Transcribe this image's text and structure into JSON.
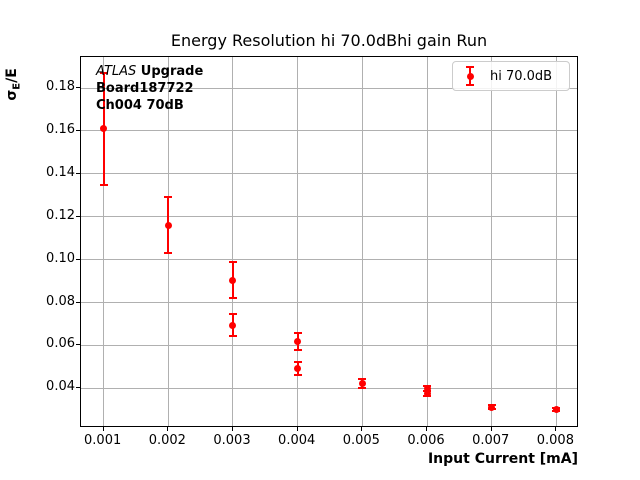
{
  "window": {
    "background": "#ffffff"
  },
  "title": "Energy Resolution hi 70.0dBhi gain Run",
  "annotation": {
    "brand": "ATLAS",
    "brand_suffix": " Upgrade",
    "line2": "Board187722",
    "line3": "Ch004 70dB"
  },
  "legend": {
    "label": "hi 70.0dB"
  },
  "axis": {
    "xlabel": "Input Current [mA]",
    "ylabel_sigma": "σ",
    "ylabel_sub": "E",
    "ylabel_rest": "/E"
  },
  "colors": {
    "series": "#ff0000",
    "grid": "#b0b0b0",
    "spine": "#000000",
    "legend_border": "#cccccc",
    "text": "#000000",
    "background": "#ffffff"
  },
  "chart_data": {
    "type": "scatter",
    "title": "Energy Resolution hi 70.0dBhi gain Run",
    "xlabel": "Input Current [mA]",
    "ylabel": "σ_E/E",
    "grid": true,
    "legend_position": "upper right",
    "legend_entries": [
      "hi 70.0dB"
    ],
    "xlim": [
      0.00065,
      0.00835
    ],
    "ylim": [
      0.0215,
      0.1945
    ],
    "x_ticks": [
      0.001,
      0.002,
      0.003,
      0.004,
      0.005,
      0.006,
      0.007,
      0.008
    ],
    "x_tick_labels": [
      "0.001",
      "0.002",
      "0.003",
      "0.004",
      "0.005",
      "0.006",
      "0.007",
      "0.008"
    ],
    "y_ticks": [
      0.04,
      0.06,
      0.08,
      0.1,
      0.12,
      0.14,
      0.16,
      0.18
    ],
    "y_tick_labels": [
      "0.04",
      "0.06",
      "0.08",
      "0.10",
      "0.12",
      "0.14",
      "0.16",
      "0.18"
    ],
    "series": [
      {
        "name": "hi 70.0dB",
        "color": "#ff0000",
        "marker": "circle-with-errorbars",
        "points": [
          {
            "x": 0.001,
            "y": 0.161,
            "yerr": 0.026
          },
          {
            "x": 0.002,
            "y": 0.116,
            "yerr": 0.013
          },
          {
            "x": 0.003,
            "y": 0.0905,
            "yerr": 0.0085
          },
          {
            "x": 0.003,
            "y": 0.0695,
            "yerr": 0.005
          },
          {
            "x": 0.004,
            "y": 0.062,
            "yerr": 0.004
          },
          {
            "x": 0.004,
            "y": 0.0493,
            "yerr": 0.003
          },
          {
            "x": 0.005,
            "y": 0.0422,
            "yerr": 0.002
          },
          {
            "x": 0.006,
            "y": 0.0398,
            "yerr": 0.0012
          },
          {
            "x": 0.006,
            "y": 0.0374,
            "yerr": 0.0012
          },
          {
            "x": 0.007,
            "y": 0.0312,
            "yerr": 0.0008
          },
          {
            "x": 0.008,
            "y": 0.0302,
            "yerr": 0.0008
          }
        ]
      }
    ]
  }
}
